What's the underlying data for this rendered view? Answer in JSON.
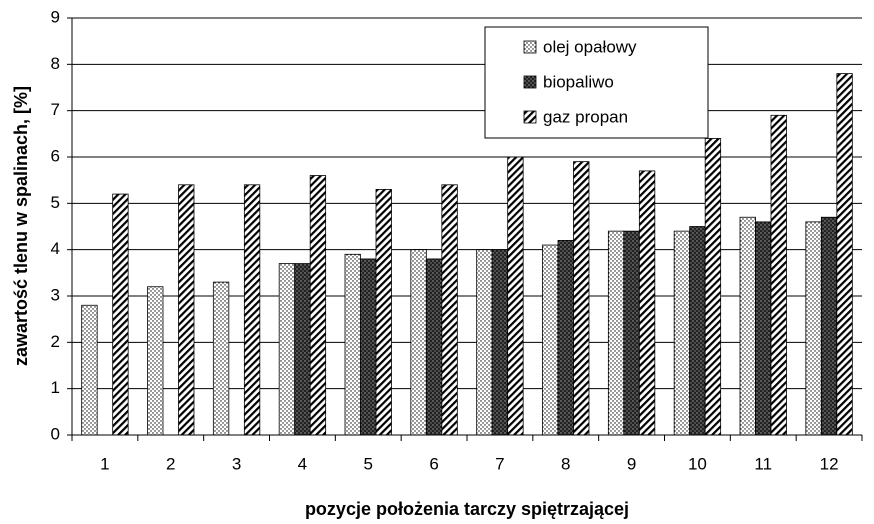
{
  "chart_data": {
    "type": "bar",
    "xlabel": "pozycje położenia tarczy spiętrzającej",
    "ylabel": "zawartość tlenu w spalinach, [%]",
    "categories": [
      "1",
      "2",
      "3",
      "4",
      "5",
      "6",
      "7",
      "8",
      "9",
      "10",
      "11",
      "12"
    ],
    "series": [
      {
        "name": "olej opałowy",
        "color": "#ffffff",
        "values": [
          2.8,
          3.2,
          3.3,
          3.7,
          3.9,
          4.0,
          4.0,
          4.1,
          4.4,
          4.4,
          4.7,
          4.6
        ]
      },
      {
        "name": "biopaliwo",
        "color": "#3a3a3a",
        "values": [
          null,
          null,
          null,
          3.7,
          3.8,
          3.8,
          4.0,
          4.2,
          4.4,
          4.5,
          4.6,
          4.7
        ]
      },
      {
        "name": "gaz propan",
        "color": "#ffffff",
        "values": [
          5.2,
          5.4,
          5.4,
          5.6,
          5.3,
          5.4,
          6.0,
          5.9,
          5.7,
          6.4,
          6.9,
          7.8
        ]
      }
    ],
    "ylim": [
      0,
      9
    ],
    "yticks": [
      0,
      1,
      2,
      3,
      4,
      5,
      6,
      7,
      8,
      9
    ],
    "grid": true,
    "legend": "top-right"
  }
}
